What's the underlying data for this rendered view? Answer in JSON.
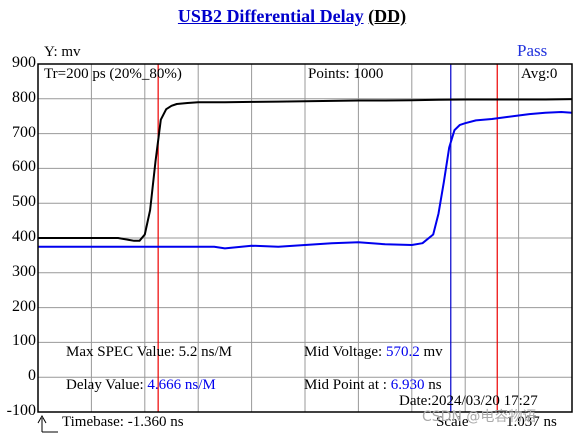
{
  "title_main": "USB2  Differential  Delay",
  "title_suffix": "(DD)",
  "status": "Pass",
  "y_axis_label": "Y: mv",
  "header": {
    "rise_time": "Tr=200  ps (20%_80%)",
    "points": "Points: 1000",
    "avg": "Avg:0"
  },
  "info": {
    "max_spec_label": "Max SPEC Value: ",
    "max_spec_value": "5.2 ns/M",
    "mid_voltage_label": "Mid Voltage: ",
    "mid_voltage_value": "570.2",
    "mid_voltage_unit": " mv",
    "delay_label": "Delay Value: ",
    "delay_value": "4.666 ns/M",
    "mid_point_label": "Mid Point at : ",
    "mid_point_value": "6.930",
    "mid_point_unit": " ns",
    "date": "Date:2024/03/20 17:27",
    "timebase": "Timebase: -1.360  ns",
    "scale": "Scale",
    "scale_value": "1.037 ns",
    "watermark": "CSDN @电容物语"
  },
  "colors": {
    "trace_reference": "#000000",
    "trace_delayed": "#0000ee",
    "marker_line": "#ee0000",
    "cursor_line": "#0000cc",
    "grid": "#999999"
  },
  "chart_data": {
    "type": "line",
    "ylabel": "Y: mv",
    "ylim": [
      -100,
      900
    ],
    "yticks": [
      900,
      800,
      700,
      600,
      500,
      400,
      300,
      200,
      100,
      0,
      -100
    ],
    "xlim": [
      0,
      10
    ],
    "grid": true,
    "series": [
      {
        "color": "#000000",
        "x": [
          0,
          0.5,
          1.0,
          1.5,
          1.8,
          1.9,
          2.0,
          2.1,
          2.2,
          2.3,
          2.4,
          2.5,
          2.6,
          2.8,
          3.0,
          3.5,
          4.0,
          4.5,
          5.0,
          5.5,
          6.0,
          6.5,
          7.0,
          7.5,
          8.0,
          8.5,
          9.0,
          9.5,
          10.0
        ],
        "values": [
          400,
          400,
          400,
          400,
          392,
          392,
          410,
          480,
          620,
          740,
          770,
          780,
          785,
          788,
          790,
          790,
          791,
          792,
          793,
          794,
          795,
          795,
          796,
          797,
          798,
          798,
          798,
          798,
          799
        ]
      },
      {
        "color": "#0000ee",
        "x": [
          0,
          0.5,
          1.0,
          1.5,
          2.0,
          2.5,
          3.0,
          3.3,
          3.5,
          4.0,
          4.5,
          5.0,
          5.5,
          6.0,
          6.5,
          7.0,
          7.2,
          7.4,
          7.5,
          7.6,
          7.7,
          7.8,
          7.9,
          8.0,
          8.2,
          8.5,
          8.8,
          9.0,
          9.2,
          9.5,
          9.8,
          10.0
        ],
        "values": [
          375,
          375,
          375,
          375,
          375,
          375,
          375,
          375,
          370,
          378,
          375,
          380,
          385,
          388,
          382,
          380,
          385,
          410,
          470,
          560,
          660,
          710,
          725,
          730,
          738,
          742,
          748,
          752,
          756,
          760,
          762,
          760
        ]
      }
    ],
    "markers": [
      {
        "kind": "red",
        "x": 2.25
      },
      {
        "kind": "red",
        "x": 8.6
      },
      {
        "kind": "blue",
        "x": 7.73
      }
    ]
  }
}
